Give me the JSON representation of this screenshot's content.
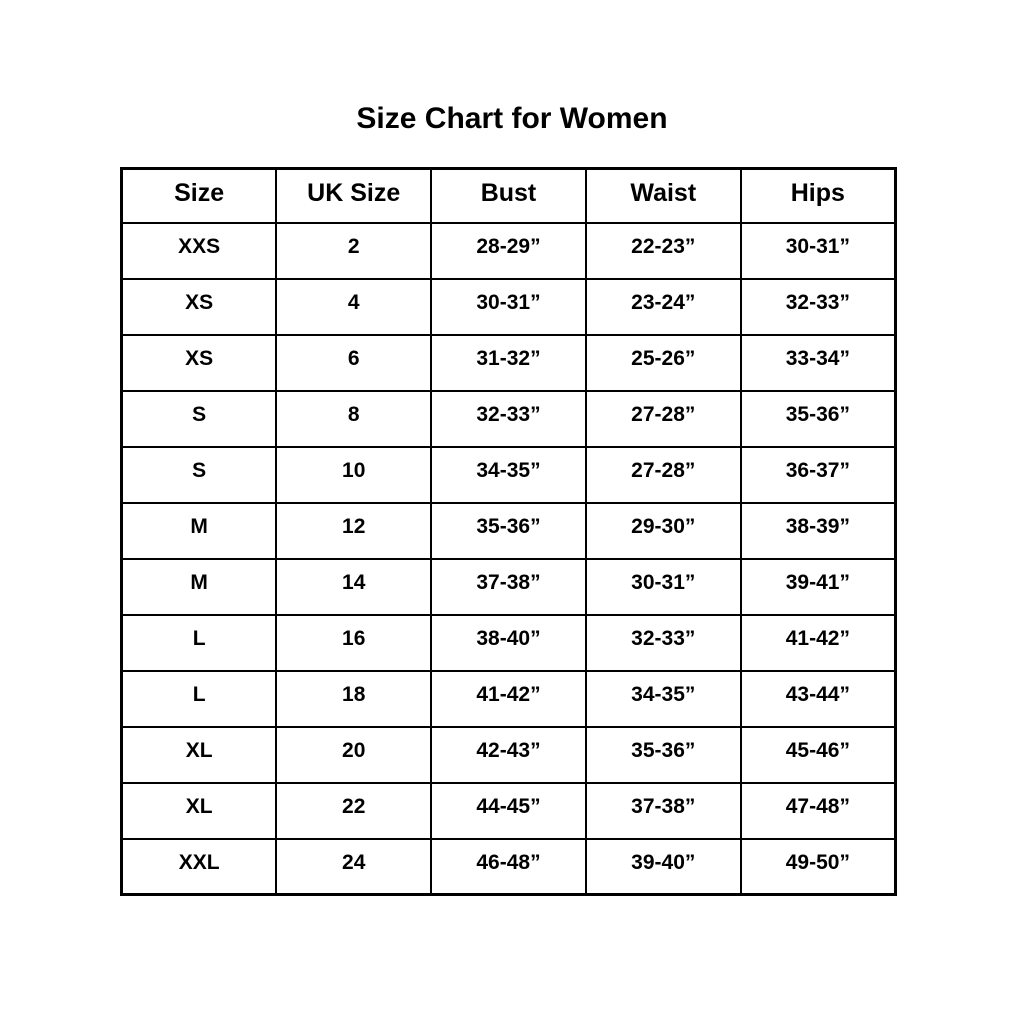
{
  "page": {
    "background_color": "#ffffff",
    "text_color": "#000000",
    "border_color": "#000000"
  },
  "title": "Size Chart for Women",
  "table": {
    "headers": [
      "Size",
      "UK Size",
      "Bust",
      "Waist",
      "Hips"
    ],
    "rows": [
      [
        "XXS",
        "2",
        "28-29”",
        "22-23”",
        "30-31”"
      ],
      [
        "XS",
        "4",
        "30-31”",
        "23-24”",
        "32-33”"
      ],
      [
        "XS",
        "6",
        "31-32”",
        "25-26”",
        "33-34”"
      ],
      [
        "S",
        "8",
        "32-33”",
        "27-28”",
        "35-36”"
      ],
      [
        "S",
        "10",
        "34-35”",
        "27-28”",
        "36-37”"
      ],
      [
        "M",
        "12",
        "35-36”",
        "29-30”",
        "38-39”"
      ],
      [
        "M",
        "14",
        "37-38”",
        "30-31”",
        "39-41”"
      ],
      [
        "L",
        "16",
        "38-40”",
        "32-33”",
        "41-42”"
      ],
      [
        "L",
        "18",
        "41-42”",
        "34-35”",
        "43-44”"
      ],
      [
        "XL",
        "20",
        "42-43”",
        "35-36”",
        "45-46”"
      ],
      [
        "XL",
        "22",
        "44-45”",
        "37-38”",
        "47-48”"
      ],
      [
        "XXL",
        "24",
        "46-48”",
        "39-40”",
        "49-50”"
      ]
    ]
  },
  "chart_data": {
    "type": "table",
    "title": "Size Chart for Women",
    "columns": [
      "Size",
      "UK Size",
      "Bust",
      "Waist",
      "Hips"
    ],
    "rows": [
      {
        "size": "XXS",
        "uk_size": "2",
        "bust": "28-29”",
        "waist": "22-23”",
        "hips": "30-31”"
      },
      {
        "size": "XS",
        "uk_size": "4",
        "bust": "30-31”",
        "waist": "23-24”",
        "hips": "32-33”"
      },
      {
        "size": "XS",
        "uk_size": "6",
        "bust": "31-32”",
        "waist": "25-26”",
        "hips": "33-34”"
      },
      {
        "size": "S",
        "uk_size": "8",
        "bust": "32-33”",
        "waist": "27-28”",
        "hips": "35-36”"
      },
      {
        "size": "S",
        "uk_size": "10",
        "bust": "34-35”",
        "waist": "27-28”",
        "hips": "36-37”"
      },
      {
        "size": "M",
        "uk_size": "12",
        "bust": "35-36”",
        "waist": "29-30”",
        "hips": "38-39”"
      },
      {
        "size": "M",
        "uk_size": "14",
        "bust": "37-38”",
        "waist": "30-31”",
        "hips": "39-41”"
      },
      {
        "size": "L",
        "uk_size": "16",
        "bust": "38-40”",
        "waist": "32-33”",
        "hips": "41-42”"
      },
      {
        "size": "L",
        "uk_size": "18",
        "bust": "41-42”",
        "waist": "34-35”",
        "hips": "43-44”"
      },
      {
        "size": "XL",
        "uk_size": "20",
        "bust": "42-43”",
        "waist": "35-36”",
        "hips": "45-46”"
      },
      {
        "size": "XL",
        "uk_size": "22",
        "bust": "44-45”",
        "waist": "37-38”",
        "hips": "47-48”"
      },
      {
        "size": "XXL",
        "uk_size": "24",
        "bust": "46-48”",
        "waist": "39-40”",
        "hips": "49-50”"
      }
    ]
  }
}
